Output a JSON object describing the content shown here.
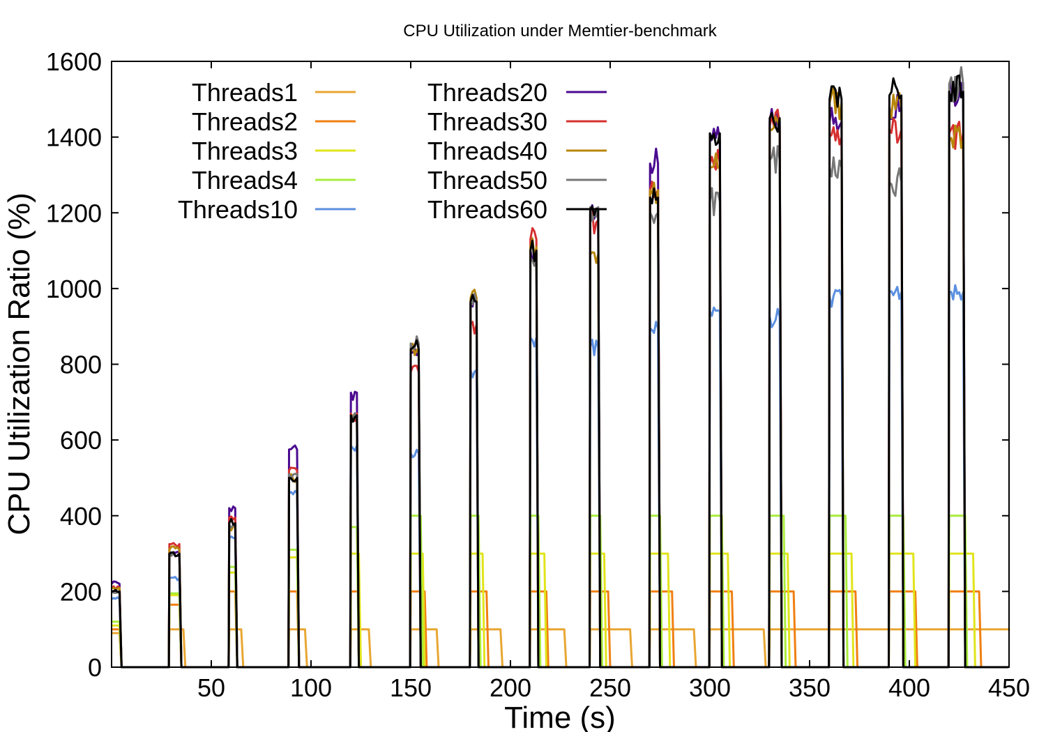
{
  "chart_data": {
    "type": "line",
    "title": "CPU Utilization under Memtier-benchmark",
    "xlabel": "Time (s)",
    "ylabel": "CPU Utilization Ratio (%)",
    "xlim": [
      0,
      450
    ],
    "ylim": [
      0,
      1600
    ],
    "xticks": [
      50,
      100,
      150,
      200,
      250,
      300,
      350,
      400,
      450
    ],
    "yticks": [
      0,
      200,
      400,
      600,
      800,
      1000,
      1200,
      1400,
      1600
    ],
    "grid": false,
    "legend_position": "top-left, two columns",
    "bursts": {
      "starts": [
        0,
        29,
        59,
        89,
        120,
        150,
        180,
        210,
        240,
        270,
        300,
        330,
        360,
        390,
        420
      ],
      "ends": {
        "Threads1": [
          5,
          37,
          66,
          98,
          130,
          164,
          196,
          228,
          261,
          293,
          328,
          450,
          450,
          450,
          450
        ],
        "Threads2": [
          5,
          35,
          63,
          94,
          125,
          158,
          189,
          219,
          250,
          282,
          312,
          343,
          374,
          404,
          436
        ],
        "Threads3": [
          5,
          35,
          63,
          94,
          125,
          157,
          187,
          218,
          248,
          280,
          310,
          340,
          372,
          403,
          433
        ],
        "Threads4": [
          5,
          35,
          63,
          94,
          124,
          156,
          185,
          215,
          246,
          276,
          307,
          338,
          369,
          398,
          429
        ],
        "Threads10": [
          5,
          35,
          63,
          94,
          124,
          155,
          184,
          214,
          245,
          275,
          306,
          336,
          367,
          397,
          428
        ],
        "Threads20": [
          5,
          35,
          63,
          94,
          124,
          155,
          184,
          214,
          245,
          275,
          306,
          336,
          367,
          397,
          428
        ],
        "Threads30": [
          5,
          35,
          63,
          94,
          124,
          155,
          184,
          214,
          245,
          275,
          306,
          336,
          367,
          397,
          428
        ],
        "Threads40": [
          5,
          35,
          63,
          94,
          124,
          155,
          184,
          214,
          245,
          275,
          306,
          336,
          367,
          397,
          428
        ],
        "Threads50": [
          5,
          35,
          63,
          94,
          124,
          155,
          184,
          214,
          245,
          275,
          306,
          336,
          367,
          397,
          428
        ],
        "Threads60": [
          5,
          35,
          63,
          94,
          124,
          155,
          184,
          214,
          245,
          275,
          306,
          336,
          367,
          397,
          428
        ]
      }
    },
    "series": [
      {
        "name": "Threads1",
        "color": "#e8a632",
        "values": [
          90,
          100,
          100,
          100,
          100,
          100,
          100,
          100,
          100,
          100,
          100,
          100,
          100,
          100,
          100
        ]
      },
      {
        "name": "Threads2",
        "color": "#f07f12",
        "values": [
          100,
          165,
          200,
          200,
          200,
          200,
          200,
          200,
          200,
          200,
          200,
          200,
          200,
          200,
          200
        ]
      },
      {
        "name": "Threads3",
        "color": "#e1e41a",
        "values": [
          110,
          190,
          250,
          290,
          300,
          300,
          300,
          300,
          300,
          300,
          300,
          300,
          300,
          300,
          300
        ]
      },
      {
        "name": "Threads4",
        "color": "#a8ec3a",
        "values": [
          120,
          195,
          265,
          310,
          370,
          400,
          400,
          400,
          400,
          400,
          400,
          400,
          400,
          400,
          400
        ]
      },
      {
        "name": "Threads10",
        "color": "#5b8fe0",
        "values": [
          180,
          235,
          340,
          460,
          585,
          565,
          785,
          870,
          845,
          895,
          940,
          925,
          980,
          990,
          990
        ]
      },
      {
        "name": "Threads20",
        "color": "#4b0a8f",
        "values": [
          220,
          305,
          420,
          575,
          725,
          830,
          960,
          1100,
          1200,
          1330,
          1390,
          1440,
          1440,
          1480,
          1510
        ]
      },
      {
        "name": "Threads30",
        "color": "#d63030",
        "values": [
          210,
          325,
          395,
          520,
          670,
          780,
          905,
          1130,
          1180,
          1260,
          1330,
          1430,
          1400,
          1420,
          1410
        ]
      },
      {
        "name": "Threads40",
        "color": "#b8860b",
        "values": [
          210,
          310,
          370,
          500,
          655,
          830,
          975,
          1110,
          1090,
          1260,
          1320,
          1420,
          1490,
          1475,
          1390
        ]
      },
      {
        "name": "Threads50",
        "color": "#777777",
        "values": [
          200,
          300,
          375,
          510,
          660,
          855,
          960,
          1080,
          1215,
          1200,
          1230,
          1340,
          1320,
          1280,
          1540
        ]
      },
      {
        "name": "Threads60",
        "color": "#000000",
        "values": [
          200,
          300,
          380,
          500,
          665,
          840,
          965,
          1100,
          1210,
          1240,
          1410,
          1450,
          1500,
          1510,
          1520
        ]
      }
    ]
  }
}
